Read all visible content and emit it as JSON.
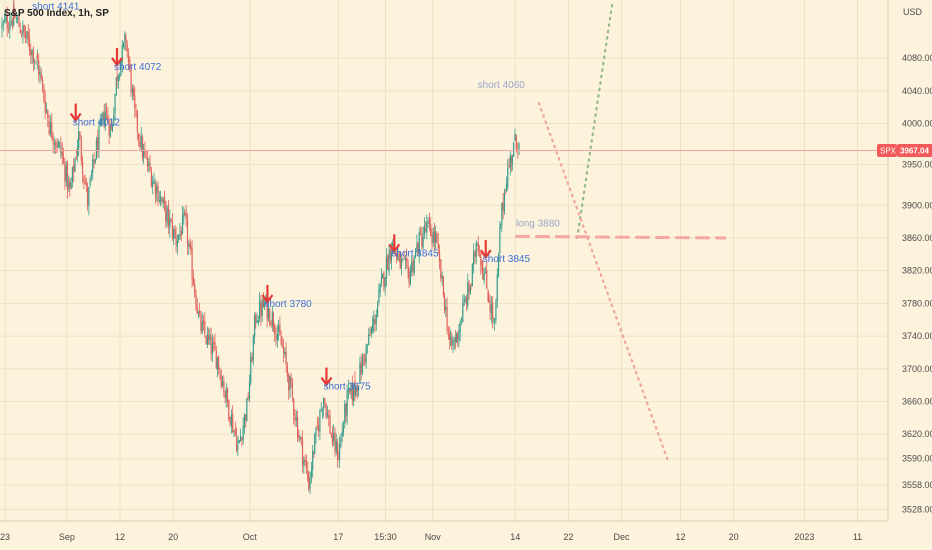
{
  "header": {
    "title": "S&P 500 Index, 1h, SP",
    "partial_label": "short 4141"
  },
  "chart_data": {
    "type": "candlestick",
    "title": "S&P 500 Index, 1h, SP",
    "currency": "USD",
    "symbol": "SPX",
    "last_price": 3967.04,
    "last_price_label": "3967.04",
    "ylim": [
      3515,
      4145
    ],
    "y_ticks": [
      {
        "value": 4080,
        "label": "4080.00"
      },
      {
        "value": 4040,
        "label": "4040.00"
      },
      {
        "value": 4000,
        "label": "4000.00"
      },
      {
        "value": 3950,
        "label": "3950.00"
      },
      {
        "value": 3900,
        "label": "3900.00"
      },
      {
        "value": 3860,
        "label": "3860.00"
      },
      {
        "value": 3820,
        "label": "3820.00"
      },
      {
        "value": 3780,
        "label": "3780.00"
      },
      {
        "value": 3740,
        "label": "3740.00"
      },
      {
        "value": 3700,
        "label": "3700.00"
      },
      {
        "value": 3660,
        "label": "3660.00"
      },
      {
        "value": 3620,
        "label": "3620.00"
      },
      {
        "value": 3590,
        "label": "3590.00"
      },
      {
        "value": 3558,
        "label": "3558.00"
      },
      {
        "value": 3528,
        "label": "3528.00"
      }
    ],
    "x_ticks": [
      {
        "slot": 0.5,
        "label": "23"
      },
      {
        "slot": 11,
        "label": "Sep"
      },
      {
        "slot": 20,
        "label": "12"
      },
      {
        "slot": 29,
        "label": "20"
      },
      {
        "slot": 42,
        "label": "Oct"
      },
      {
        "slot": 57,
        "label": "17"
      },
      {
        "slot": 65,
        "label": "15:30"
      },
      {
        "slot": 73,
        "label": "Nov"
      },
      {
        "slot": 87,
        "label": "14"
      },
      {
        "slot": 96,
        "label": "22"
      },
      {
        "slot": 105,
        "label": "Dec"
      },
      {
        "slot": 115,
        "label": "12"
      },
      {
        "slot": 124,
        "label": "20"
      },
      {
        "slot": 136,
        "label": "2023"
      },
      {
        "slot": 145,
        "label": "11"
      }
    ],
    "price_path": [
      [
        0,
        4118
      ],
      [
        2,
        4132
      ],
      [
        4,
        4105
      ],
      [
        6,
        4075
      ],
      [
        8,
        3998
      ],
      [
        10,
        3965
      ],
      [
        11.5,
        3915
      ],
      [
        13,
        3985
      ],
      [
        14.5,
        3905
      ],
      [
        16,
        3970
      ],
      [
        17.5,
        4015
      ],
      [
        18.5,
        3990
      ],
      [
        19.5,
        4060
      ],
      [
        21,
        4102
      ],
      [
        22.5,
        4010
      ],
      [
        24,
        3960
      ],
      [
        26,
        3925
      ],
      [
        28,
        3885
      ],
      [
        29.5,
        3858
      ],
      [
        31,
        3880
      ],
      [
        32,
        3832
      ],
      [
        33.5,
        3755
      ],
      [
        35,
        3732
      ],
      [
        36.5,
        3712
      ],
      [
        38,
        3665
      ],
      [
        40,
        3605
      ],
      [
        41.5,
        3652
      ],
      [
        43,
        3765
      ],
      [
        44.5,
        3778
      ],
      [
        46,
        3760
      ],
      [
        47.5,
        3725
      ],
      [
        49,
        3672
      ],
      [
        50.5,
        3612
      ],
      [
        52,
        3560
      ],
      [
        53,
        3608
      ],
      [
        54.5,
        3668
      ],
      [
        56,
        3612
      ],
      [
        57,
        3595
      ],
      [
        58.5,
        3662
      ],
      [
        60,
        3678
      ],
      [
        61.5,
        3718
      ],
      [
        63,
        3755
      ],
      [
        64.5,
        3808
      ],
      [
        66,
        3852
      ],
      [
        67.5,
        3828
      ],
      [
        69,
        3815
      ],
      [
        70.5,
        3852
      ],
      [
        72,
        3872
      ],
      [
        73.5,
        3858
      ],
      [
        75,
        3782
      ],
      [
        76,
        3725
      ],
      [
        77,
        3738
      ],
      [
        78.5,
        3782
      ],
      [
        79.5,
        3805
      ],
      [
        80.5,
        3862
      ],
      [
        81.5,
        3822
      ],
      [
        82.5,
        3788
      ],
      [
        83.5,
        3750
      ],
      [
        84.5,
        3878
      ],
      [
        85.5,
        3935
      ],
      [
        86.5,
        3965
      ],
      [
        87.2,
        3982
      ],
      [
        87.8,
        3967
      ]
    ],
    "drawings": [
      {
        "type": "dotted-line",
        "color": "#94b98f",
        "from": [
          97.5,
          3860
        ],
        "to": [
          103.5,
          4150
        ]
      },
      {
        "type": "dotted-line",
        "color": "#f0a3a0",
        "from": [
          91,
          4025
        ],
        "to": [
          113,
          3585
        ]
      },
      {
        "type": "dashed-line",
        "color": "#f4a6a3",
        "from": [
          87.2,
          3862
        ],
        "to": [
          122.5,
          3860
        ]
      },
      {
        "type": "horizontal-line",
        "color": "#f4a6a3",
        "value": 3967
      }
    ],
    "annotations": [
      {
        "text": "short 4141",
        "slot": 8.5,
        "value": 4143,
        "arrow": false,
        "color": "#3b6fd4"
      },
      {
        "text": "short 4072",
        "slot": 20,
        "value": 4068,
        "arrow": true,
        "color": "#3b6fd4"
      },
      {
        "text": "short 4012",
        "slot": 13,
        "value": 4000,
        "arrow": true,
        "color": "#3b6fd4"
      },
      {
        "text": "short 4060",
        "slot": 84,
        "value": 4047,
        "arrow": false,
        "color": "#9aa3c8"
      },
      {
        "text": "long 3880",
        "slot": 90.5,
        "value": 3878,
        "arrow": false,
        "color": "#9aa3c8"
      },
      {
        "text": "short 3845",
        "slot": 67,
        "value": 3840,
        "arrow": true,
        "color": "#3b6fd4"
      },
      {
        "text": "short 3845",
        "slot": 82.5,
        "value": 3833,
        "arrow": true,
        "color": "#3b6fd4"
      },
      {
        "text": "short 3780",
        "slot": 45.5,
        "value": 3778,
        "arrow": true,
        "color": "#3b6fd4"
      },
      {
        "text": "short 3675",
        "slot": 55.5,
        "value": 3677,
        "arrow": true,
        "color": "#3b6fd4"
      }
    ],
    "colors": {
      "background": "#fdf3dd",
      "up": "#3a9e8c",
      "down": "#e0605a",
      "arrow": "#e53935",
      "grid": "#ede2c8",
      "price_badge": "#f25a5a"
    },
    "grid": true
  }
}
